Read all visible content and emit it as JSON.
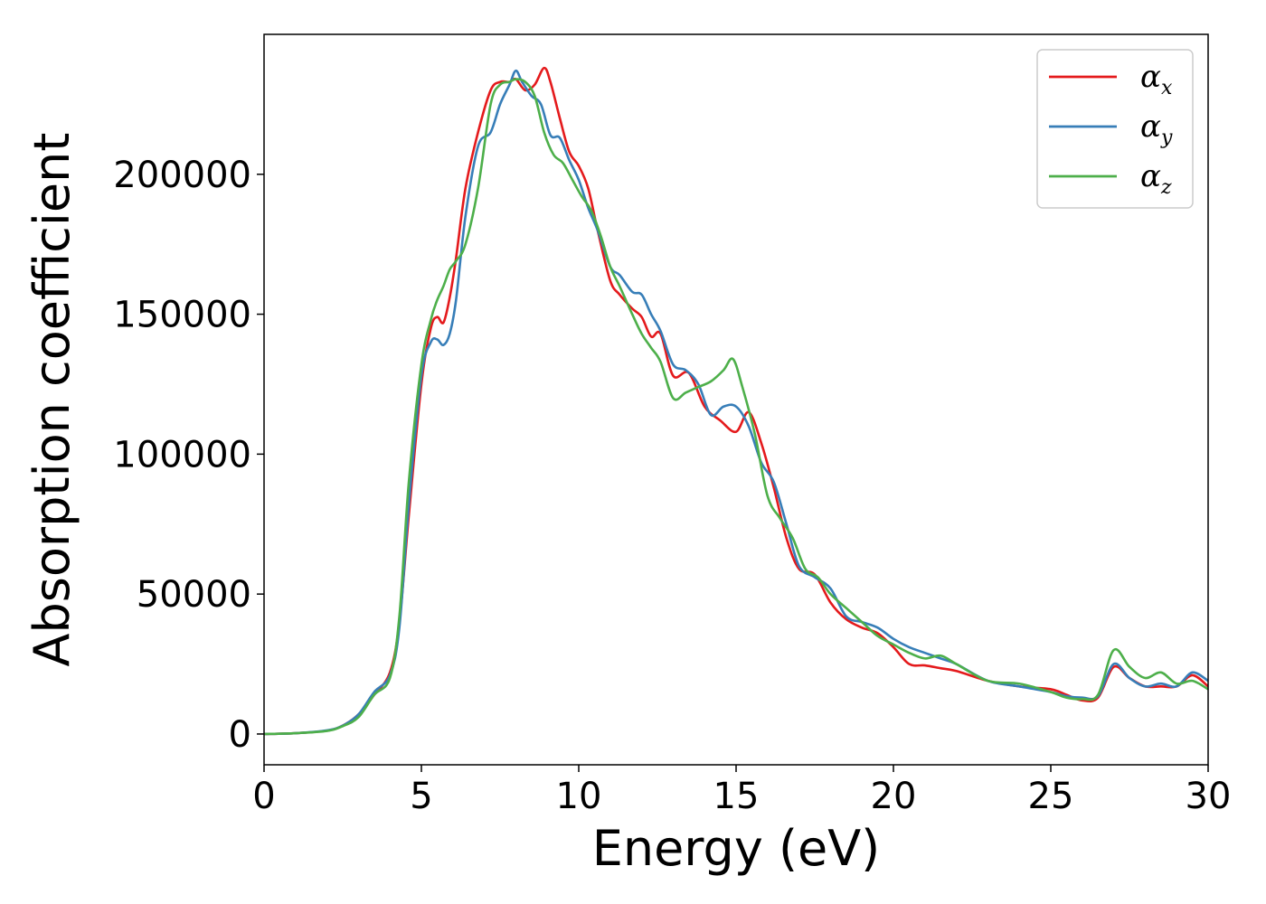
{
  "chart_data": {
    "type": "line",
    "xlabel": "Energy (eV)",
    "ylabel": "Absorption coefficient",
    "xlim": [
      0,
      30
    ],
    "ylim": [
      -11000,
      250000
    ],
    "xticks": [
      0,
      5,
      10,
      15,
      20,
      25,
      30
    ],
    "xtick_labels": [
      "0",
      "5",
      "10",
      "15",
      "20",
      "25",
      "30"
    ],
    "yticks": [
      0,
      50000,
      100000,
      150000,
      200000
    ],
    "ytick_labels": [
      "0",
      "50000",
      "100000",
      "150000",
      "200000"
    ],
    "grid": false,
    "legend_position": "top-right",
    "series": [
      {
        "name": "α",
        "subscript": "x",
        "color": "#e41a1c",
        "x": [
          0,
          1,
          2,
          2.5,
          3,
          3.5,
          4,
          4.3,
          4.6,
          5.0,
          5.3,
          5.5,
          5.7,
          5.9,
          6.1,
          6.4,
          6.8,
          7.2,
          7.5,
          7.8,
          8.0,
          8.3,
          8.6,
          8.9,
          9.1,
          9.4,
          9.7,
          10.0,
          10.3,
          10.6,
          11.0,
          11.3,
          11.7,
          12.0,
          12.3,
          12.6,
          13.0,
          13.5,
          14.0,
          14.5,
          15.0,
          15.4,
          15.8,
          16.2,
          16.6,
          17.0,
          17.5,
          18.0,
          18.5,
          19.0,
          19.5,
          20.0,
          20.5,
          21.0,
          21.5,
          22.0,
          23.0,
          24.0,
          25.0,
          25.5,
          26.0,
          26.5,
          27.0,
          27.5,
          28.0,
          28.5,
          29.0,
          29.5,
          30.0
        ],
        "y": [
          0,
          300,
          1200,
          3000,
          7000,
          14000,
          22000,
          40000,
          78000,
          125000,
          145000,
          149000,
          147000,
          156000,
          170000,
          195000,
          215000,
          230000,
          233000,
          233000,
          234000,
          230000,
          232000,
          238000,
          233000,
          220000,
          208000,
          203000,
          195000,
          180000,
          162000,
          157000,
          152000,
          149000,
          142000,
          143000,
          128000,
          129000,
          117000,
          112000,
          108000,
          115000,
          104000,
          88000,
          70000,
          59000,
          57000,
          47000,
          41000,
          38000,
          36000,
          31000,
          25000,
          24500,
          23500,
          22500,
          19000,
          17000,
          16000,
          14000,
          12000,
          13000,
          24000,
          20000,
          17000,
          17000,
          17000,
          21000,
          17000
        ]
      },
      {
        "name": "α",
        "subscript": "y",
        "color": "#377eb8",
        "x": [
          0,
          1,
          2,
          2.5,
          3,
          3.5,
          4,
          4.3,
          4.6,
          5.0,
          5.3,
          5.5,
          5.7,
          5.9,
          6.1,
          6.4,
          6.8,
          7.2,
          7.5,
          7.8,
          8.0,
          8.2,
          8.5,
          8.8,
          9.1,
          9.4,
          9.7,
          10.0,
          10.3,
          10.6,
          11.0,
          11.3,
          11.7,
          12.0,
          12.3,
          12.6,
          13.0,
          13.4,
          13.8,
          14.2,
          14.6,
          15.0,
          15.4,
          15.8,
          16.2,
          16.6,
          17.0,
          17.5,
          18.0,
          18.5,
          19.0,
          19.5,
          20.0,
          20.5,
          21.0,
          21.5,
          22.0,
          23.0,
          24.0,
          25.0,
          25.5,
          26.0,
          26.5,
          27.0,
          27.5,
          28.0,
          28.5,
          29.0,
          29.5,
          30.0
        ],
        "y": [
          0,
          300,
          1300,
          3000,
          7000,
          15000,
          21000,
          38000,
          82000,
          128000,
          140000,
          141000,
          139000,
          143000,
          155000,
          185000,
          210000,
          215000,
          225000,
          232000,
          237000,
          233000,
          228000,
          225000,
          214000,
          213000,
          205000,
          198000,
          188000,
          180000,
          167000,
          164000,
          158000,
          157000,
          150000,
          144000,
          132000,
          130000,
          125000,
          114000,
          117000,
          117000,
          110000,
          97000,
          90000,
          75000,
          60000,
          56000,
          52000,
          42000,
          40000,
          38000,
          34000,
          31000,
          29000,
          27000,
          25000,
          19000,
          17000,
          15000,
          13500,
          13000,
          13500,
          25000,
          20000,
          17000,
          18000,
          17000,
          22000,
          19000
        ]
      },
      {
        "name": "α",
        "subscript": "z",
        "color": "#4daf4a",
        "x": [
          0,
          1,
          2,
          2.5,
          3,
          3.5,
          4,
          4.3,
          4.6,
          5.0,
          5.3,
          5.5,
          5.7,
          5.9,
          6.1,
          6.4,
          6.8,
          7.2,
          7.5,
          7.8,
          8.0,
          8.3,
          8.6,
          8.9,
          9.2,
          9.5,
          9.8,
          10.1,
          10.4,
          10.7,
          11.0,
          11.3,
          11.7,
          12.0,
          12.3,
          12.6,
          13.0,
          13.4,
          13.8,
          14.2,
          14.6,
          14.9,
          15.2,
          15.6,
          16.0,
          16.4,
          16.8,
          17.2,
          17.6,
          18.0,
          18.5,
          19.0,
          19.5,
          20.0,
          20.5,
          21.0,
          21.5,
          22.0,
          23.0,
          24.0,
          25.0,
          25.5,
          26.0,
          26.5,
          27.0,
          27.5,
          28.0,
          28.5,
          29.0,
          29.5,
          30.0
        ],
        "y": [
          0,
          300,
          1100,
          2800,
          6000,
          14000,
          20000,
          42000,
          90000,
          132000,
          148000,
          155000,
          160000,
          166000,
          169000,
          175000,
          195000,
          225000,
          232000,
          233000,
          234000,
          233000,
          228000,
          215000,
          207000,
          204000,
          198000,
          192000,
          187000,
          178000,
          167000,
          160000,
          150000,
          143000,
          138000,
          133000,
          120000,
          122000,
          124000,
          126000,
          130000,
          134000,
          124000,
          107000,
          85000,
          77000,
          70000,
          59000,
          56000,
          50000,
          45000,
          40000,
          35000,
          32000,
          29000,
          27000,
          28000,
          25000,
          19000,
          18000,
          15000,
          13000,
          12500,
          14000,
          30000,
          24000,
          20000,
          22000,
          18000,
          19000,
          16000
        ]
      }
    ]
  }
}
